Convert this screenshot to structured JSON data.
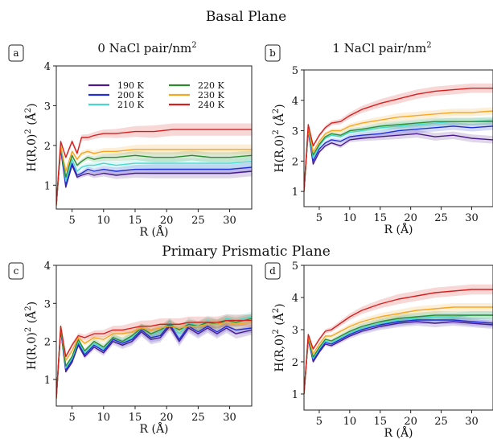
{
  "section_titles": {
    "basal": "Basal Plane",
    "prismatic": "Primary Prismatic Plane"
  },
  "colors": {
    "190 K": "#4b1b8c",
    "200 K": "#1f2fd6",
    "210 K": "#48d8d0",
    "220 K": "#2e8b2e",
    "230 K": "#f5a623",
    "240 K": "#d62020"
  },
  "chart_data": [
    {
      "panel": "a",
      "type": "line",
      "title": "0 NaCl pair/nm²",
      "xlabel": "R (Å)",
      "ylabel": "H(R,0)² (Å²)",
      "xlim": [
        2.5,
        33.5
      ],
      "ylim": [
        0.4,
        4.0
      ],
      "xticks": [
        "5",
        "10",
        "15",
        "20",
        "25",
        "30"
      ],
      "yticks": [
        "1",
        "2",
        "3",
        "4"
      ],
      "legend": {
        "position": "top",
        "entries": [
          "190 K",
          "200 K",
          "210 K",
          "220 K",
          "230 K",
          "240 K"
        ]
      },
      "series": [
        {
          "name": "190 K",
          "x": [
            2.5,
            3.2,
            4.0,
            5.0,
            5.8,
            6.5,
            7.5,
            8.5,
            10,
            12,
            15,
            18,
            21,
            24,
            27,
            30,
            33.5
          ],
          "y": [
            0.5,
            1.9,
            0.95,
            1.5,
            1.2,
            1.25,
            1.3,
            1.25,
            1.3,
            1.25,
            1.3,
            1.3,
            1.3,
            1.3,
            1.3,
            1.3,
            1.35
          ]
        },
        {
          "name": "200 K",
          "x": [
            2.5,
            3.2,
            4.0,
            5.0,
            5.8,
            6.5,
            7.5,
            8.5,
            10,
            12,
            15,
            18,
            21,
            24,
            27,
            30,
            33.5
          ],
          "y": [
            0.5,
            1.95,
            1.0,
            1.55,
            1.25,
            1.3,
            1.4,
            1.35,
            1.4,
            1.35,
            1.4,
            1.4,
            1.4,
            1.4,
            1.4,
            1.4,
            1.45
          ]
        },
        {
          "name": "210 K",
          "x": [
            2.5,
            3.2,
            4.0,
            5.0,
            5.8,
            6.5,
            7.5,
            8.5,
            10,
            12,
            15,
            18,
            21,
            24,
            27,
            30,
            33.5
          ],
          "y": [
            0.5,
            2.0,
            1.1,
            1.65,
            1.35,
            1.45,
            1.5,
            1.5,
            1.55,
            1.5,
            1.55,
            1.55,
            1.55,
            1.55,
            1.55,
            1.55,
            1.6
          ]
        },
        {
          "name": "220 K",
          "x": [
            2.5,
            3.2,
            4.0,
            5.0,
            5.8,
            6.5,
            7.5,
            8.5,
            10,
            12,
            15,
            18,
            21,
            24,
            27,
            30,
            33.5
          ],
          "y": [
            0.5,
            2.0,
            1.2,
            1.75,
            1.5,
            1.6,
            1.7,
            1.65,
            1.7,
            1.7,
            1.75,
            1.7,
            1.7,
            1.75,
            1.7,
            1.7,
            1.75
          ]
        },
        {
          "name": "230 K",
          "x": [
            2.5,
            3.2,
            4.0,
            5.0,
            5.8,
            6.5,
            7.5,
            8.5,
            10,
            12,
            15,
            18,
            21,
            24,
            27,
            30,
            33.5
          ],
          "y": [
            0.5,
            2.0,
            1.35,
            1.85,
            1.65,
            1.8,
            1.85,
            1.8,
            1.85,
            1.85,
            1.9,
            1.9,
            1.9,
            1.9,
            1.9,
            1.9,
            1.9
          ]
        },
        {
          "name": "240 K",
          "x": [
            2.5,
            3.2,
            4.0,
            5.0,
            5.8,
            6.5,
            7.5,
            8.5,
            10,
            12,
            15,
            18,
            21,
            24,
            27,
            30,
            33.5
          ],
          "y": [
            0.5,
            2.1,
            1.7,
            2.1,
            1.8,
            2.2,
            2.2,
            2.25,
            2.3,
            2.3,
            2.35,
            2.35,
            2.4,
            2.4,
            2.4,
            2.4,
            2.4
          ]
        }
      ]
    },
    {
      "panel": "b",
      "type": "line",
      "title": "1 NaCl pair/nm²",
      "xlabel": "R (Å)",
      "ylabel": "H(R,0)² (Å²)",
      "xlim": [
        2.5,
        33.5
      ],
      "ylim": [
        0.5,
        5.0
      ],
      "xticks": [
        "5",
        "10",
        "15",
        "20",
        "25",
        "30"
      ],
      "yticks": [
        "1",
        "2",
        "3",
        "4",
        "5"
      ],
      "series": [
        {
          "name": "190 K",
          "x": [
            2.5,
            3.2,
            4.0,
            5.0,
            6.0,
            7.0,
            8.5,
            10,
            12,
            15,
            18,
            21,
            24,
            27,
            30,
            33.5
          ],
          "y": [
            1.0,
            3.0,
            1.9,
            2.3,
            2.5,
            2.6,
            2.5,
            2.7,
            2.75,
            2.8,
            2.85,
            2.9,
            2.8,
            2.85,
            2.75,
            2.7
          ]
        },
        {
          "name": "200 K",
          "x": [
            2.5,
            3.2,
            4.0,
            5.0,
            6.0,
            7.0,
            8.5,
            10,
            12,
            15,
            18,
            21,
            24,
            27,
            30,
            33.5
          ],
          "y": [
            1.0,
            3.0,
            2.0,
            2.4,
            2.6,
            2.7,
            2.65,
            2.8,
            2.85,
            2.9,
            3.0,
            3.05,
            3.1,
            3.15,
            3.1,
            3.15
          ]
        },
        {
          "name": "210 K",
          "x": [
            2.5,
            3.2,
            4.0,
            5.0,
            6.0,
            7.0,
            8.5,
            10,
            12,
            15,
            18,
            21,
            24,
            27,
            30,
            33.5
          ],
          "y": [
            1.0,
            3.05,
            2.1,
            2.5,
            2.75,
            2.85,
            2.8,
            2.95,
            3.0,
            3.1,
            3.15,
            3.2,
            3.25,
            3.3,
            3.3,
            3.35
          ]
        },
        {
          "name": "220 K",
          "x": [
            2.5,
            3.2,
            4.0,
            5.0,
            6.0,
            7.0,
            8.5,
            10,
            12,
            15,
            18,
            21,
            24,
            27,
            30,
            33.5
          ],
          "y": [
            1.0,
            3.1,
            2.2,
            2.55,
            2.8,
            2.9,
            2.85,
            3.0,
            3.05,
            3.15,
            3.2,
            3.25,
            3.3,
            3.3,
            3.3,
            3.3
          ]
        },
        {
          "name": "230 K",
          "x": [
            2.5,
            3.2,
            4.0,
            5.0,
            6.0,
            7.0,
            8.5,
            10,
            12,
            15,
            18,
            21,
            24,
            27,
            30,
            33.5
          ],
          "y": [
            1.0,
            3.15,
            2.3,
            2.65,
            2.9,
            3.0,
            3.0,
            3.15,
            3.25,
            3.35,
            3.45,
            3.5,
            3.55,
            3.6,
            3.6,
            3.65
          ]
        },
        {
          "name": "240 K",
          "x": [
            2.5,
            3.2,
            4.0,
            5.0,
            6.0,
            7.0,
            8.5,
            10,
            12,
            15,
            18,
            21,
            24,
            27,
            30,
            33.5
          ],
          "y": [
            1.0,
            3.2,
            2.5,
            2.85,
            3.1,
            3.25,
            3.3,
            3.5,
            3.7,
            3.9,
            4.05,
            4.2,
            4.3,
            4.35,
            4.4,
            4.4
          ]
        }
      ]
    },
    {
      "panel": "c",
      "type": "line",
      "title": "",
      "xlabel": "R (Å)",
      "ylabel": "H(R,0)² (Å²)",
      "xlim": [
        2.5,
        33.5
      ],
      "ylim": [
        0.3,
        4.0
      ],
      "xticks": [
        "5",
        "10",
        "15",
        "20",
        "25",
        "30"
      ],
      "yticks": [
        "1",
        "2",
        "3",
        "4"
      ],
      "series": [
        {
          "name": "190 K",
          "x": [
            2.5,
            3.2,
            4.0,
            5.0,
            6.0,
            7.0,
            8.5,
            10,
            11.5,
            13,
            14.5,
            16,
            17.5,
            19,
            20.5,
            22,
            23.5,
            25,
            26.5,
            28,
            29.5,
            31,
            33.5
          ],
          "y": [
            0.5,
            2.3,
            1.2,
            1.45,
            1.9,
            1.6,
            1.85,
            1.7,
            2.0,
            1.9,
            2.0,
            2.25,
            2.05,
            2.1,
            2.4,
            2.0,
            2.35,
            2.2,
            2.35,
            2.2,
            2.35,
            2.2,
            2.3
          ]
        },
        {
          "name": "200 K",
          "x": [
            2.5,
            3.2,
            4.0,
            5.0,
            6.0,
            7.0,
            8.5,
            10,
            11.5,
            13,
            14.5,
            16,
            17.5,
            19,
            20.5,
            22,
            23.5,
            25,
            26.5,
            28,
            29.5,
            31,
            33.5
          ],
          "y": [
            0.5,
            2.3,
            1.25,
            1.5,
            1.95,
            1.65,
            1.9,
            1.75,
            2.05,
            1.95,
            2.05,
            2.3,
            2.1,
            2.15,
            2.45,
            2.05,
            2.4,
            2.25,
            2.4,
            2.25,
            2.4,
            2.3,
            2.35
          ]
        },
        {
          "name": "210 K",
          "x": [
            2.5,
            3.2,
            4.0,
            5.0,
            6.0,
            7.0,
            8.5,
            10,
            11.5,
            13,
            14.5,
            16,
            17.5,
            19,
            20.5,
            22,
            23.5,
            25,
            26.5,
            28,
            29.5,
            31,
            33.5
          ],
          "y": [
            0.5,
            2.35,
            1.3,
            1.55,
            2.0,
            1.7,
            1.95,
            1.8,
            2.1,
            2.0,
            2.1,
            2.35,
            2.2,
            2.25,
            2.5,
            2.2,
            2.5,
            2.4,
            2.55,
            2.45,
            2.6,
            2.55,
            2.65
          ]
        },
        {
          "name": "220 K",
          "x": [
            2.5,
            3.2,
            4.0,
            5.0,
            6.0,
            7.0,
            8.5,
            10,
            11.5,
            13,
            14.5,
            16,
            17.5,
            19,
            20.5,
            22,
            23.5,
            25,
            26.5,
            28,
            29.5,
            31,
            33.5
          ],
          "y": [
            0.5,
            2.35,
            1.35,
            1.6,
            2.05,
            1.75,
            2.0,
            1.85,
            2.1,
            2.0,
            2.15,
            2.35,
            2.2,
            2.3,
            2.45,
            2.3,
            2.45,
            2.4,
            2.5,
            2.45,
            2.55,
            2.5,
            2.6
          ]
        },
        {
          "name": "230 K",
          "x": [
            2.5,
            3.2,
            4.0,
            5.0,
            6.0,
            7.0,
            8.5,
            10,
            11.5,
            13,
            14.5,
            16,
            17.5,
            19,
            20.5,
            22,
            23.5,
            25,
            26.5,
            28,
            29.5,
            31,
            33.5
          ],
          "y": [
            0.5,
            2.4,
            1.5,
            1.75,
            2.1,
            1.95,
            2.1,
            2.05,
            2.2,
            2.2,
            2.25,
            2.35,
            2.3,
            2.35,
            2.4,
            2.35,
            2.4,
            2.4,
            2.45,
            2.45,
            2.5,
            2.45,
            2.5
          ]
        },
        {
          "name": "240 K",
          "x": [
            2.5,
            3.2,
            4.0,
            5.0,
            6.0,
            7.0,
            8.5,
            10,
            11.5,
            13,
            14.5,
            16,
            17.5,
            19,
            20.5,
            22,
            23.5,
            25,
            26.5,
            28,
            29.5,
            31,
            33.5
          ],
          "y": [
            0.5,
            2.4,
            1.6,
            1.9,
            2.15,
            2.1,
            2.2,
            2.2,
            2.3,
            2.3,
            2.35,
            2.4,
            2.4,
            2.45,
            2.45,
            2.45,
            2.5,
            2.5,
            2.5,
            2.5,
            2.55,
            2.55,
            2.55
          ]
        }
      ]
    },
    {
      "panel": "d",
      "type": "line",
      "title": "",
      "xlabel": "R (Å)",
      "ylabel": "H(R,0)² (Å²)",
      "xlim": [
        2.5,
        33.5
      ],
      "ylim": [
        0.5,
        5.0
      ],
      "xticks": [
        "5",
        "10",
        "15",
        "20",
        "25",
        "30"
      ],
      "yticks": [
        "1",
        "2",
        "3",
        "4",
        "5"
      ],
      "series": [
        {
          "name": "190 K",
          "x": [
            2.5,
            3.2,
            4.0,
            5.0,
            6.0,
            7.0,
            8.5,
            10,
            12,
            15,
            18,
            21,
            24,
            27,
            30,
            33.5
          ],
          "y": [
            1.0,
            2.7,
            2.0,
            2.3,
            2.55,
            2.5,
            2.65,
            2.8,
            2.95,
            3.1,
            3.2,
            3.25,
            3.2,
            3.25,
            3.2,
            3.15
          ]
        },
        {
          "name": "200 K",
          "x": [
            2.5,
            3.2,
            4.0,
            5.0,
            6.0,
            7.0,
            8.5,
            10,
            12,
            15,
            18,
            21,
            24,
            27,
            30,
            33.5
          ],
          "y": [
            1.0,
            2.7,
            2.05,
            2.35,
            2.6,
            2.55,
            2.7,
            2.85,
            3.0,
            3.15,
            3.25,
            3.3,
            3.3,
            3.3,
            3.25,
            3.2
          ]
        },
        {
          "name": "210 K",
          "x": [
            2.5,
            3.2,
            4.0,
            5.0,
            6.0,
            7.0,
            8.5,
            10,
            12,
            15,
            18,
            21,
            24,
            27,
            30,
            33.5
          ],
          "y": [
            1.0,
            2.75,
            2.1,
            2.4,
            2.65,
            2.6,
            2.75,
            2.9,
            3.05,
            3.2,
            3.3,
            3.35,
            3.4,
            3.4,
            3.45,
            3.45
          ]
        },
        {
          "name": "220 K",
          "x": [
            2.5,
            3.2,
            4.0,
            5.0,
            6.0,
            7.0,
            8.5,
            10,
            12,
            15,
            18,
            21,
            24,
            27,
            30,
            33.5
          ],
          "y": [
            1.0,
            2.75,
            2.15,
            2.45,
            2.7,
            2.65,
            2.8,
            2.95,
            3.1,
            3.25,
            3.35,
            3.4,
            3.45,
            3.45,
            3.45,
            3.45
          ]
        },
        {
          "name": "230 K",
          "x": [
            2.5,
            3.2,
            4.0,
            5.0,
            6.0,
            7.0,
            8.5,
            10,
            12,
            15,
            18,
            21,
            24,
            27,
            30,
            33.5
          ],
          "y": [
            1.0,
            2.8,
            2.25,
            2.55,
            2.8,
            2.8,
            2.95,
            3.1,
            3.25,
            3.4,
            3.5,
            3.6,
            3.65,
            3.7,
            3.7,
            3.7
          ]
        },
        {
          "name": "240 K",
          "x": [
            2.5,
            3.2,
            4.0,
            5.0,
            6.0,
            7.0,
            8.5,
            10,
            12,
            15,
            18,
            21,
            24,
            27,
            30,
            33.5
          ],
          "y": [
            1.0,
            2.85,
            2.4,
            2.7,
            2.95,
            3.0,
            3.2,
            3.4,
            3.6,
            3.8,
            3.95,
            4.05,
            4.15,
            4.2,
            4.25,
            4.25
          ]
        }
      ]
    }
  ]
}
